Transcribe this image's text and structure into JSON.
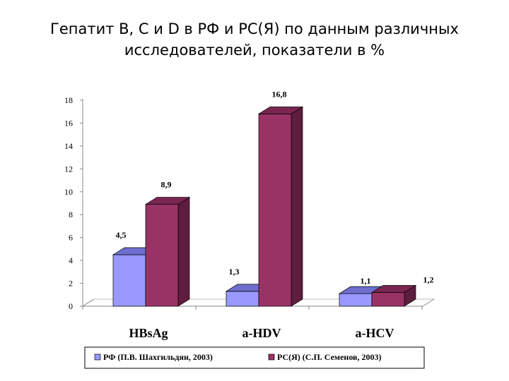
{
  "title": {
    "line1": "Гепатит В, С и D в РФ и РС(Я) по данным различных",
    "line2": "исследователей, показатели в %"
  },
  "chart_data": {
    "type": "bar",
    "categories": [
      "HBsAg",
      "a-HDV",
      "a-HCV"
    ],
    "series": [
      {
        "name": "РФ (П.В. Шахгильдян, 2003)",
        "values": [
          4.5,
          1.3,
          1.1
        ],
        "labels": [
          "4,5",
          "1,3",
          "1,1"
        ],
        "color": "#9999ff",
        "top_color": "#6f6fd0",
        "side_color": "#5252a8"
      },
      {
        "name": "РС(Я) (С.П. Семенов, 2003)",
        "values": [
          8.9,
          16.8,
          1.2
        ],
        "labels": [
          "8,9",
          "16,8",
          "1,2"
        ],
        "color": "#993366",
        "top_color": "#7a2650",
        "side_color": "#5e1d3e"
      }
    ],
    "ylim": [
      0,
      18
    ],
    "yticks": [
      "0",
      "2",
      "4",
      "6",
      "8",
      "10",
      "12",
      "14",
      "16",
      "18"
    ],
    "grid": false,
    "legend_position": "bottom"
  }
}
